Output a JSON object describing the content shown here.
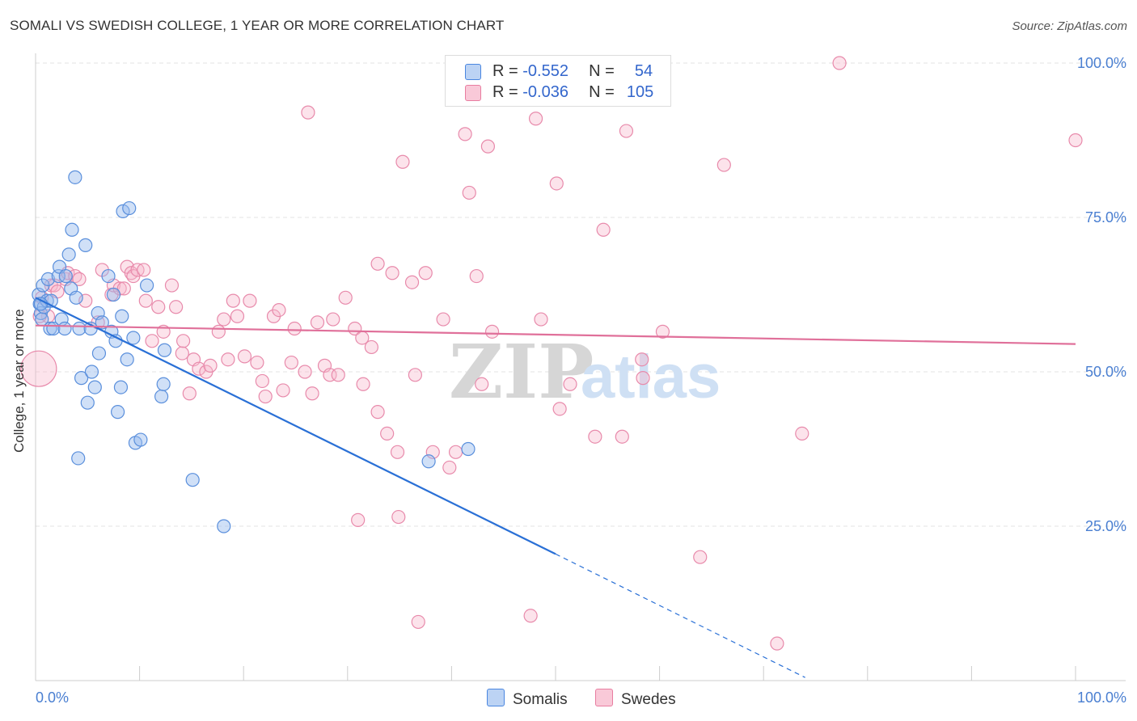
{
  "title": "SOMALI VS SWEDISH COLLEGE, 1 YEAR OR MORE CORRELATION CHART",
  "source": "Source: ZipAtlas.com",
  "watermark": {
    "zip": "ZIP",
    "atlas": "atlas"
  },
  "legend": {
    "r_label": "R =",
    "n_label": "N =",
    "series": [
      {
        "name": "Somalis",
        "r": "-0.552",
        "n": "54",
        "color": "#4a86e0",
        "fill": "#a9c6f2",
        "line": "#2a70d6"
      },
      {
        "name": "Swedes",
        "r": "-0.036",
        "n": "105",
        "color": "#e87da0",
        "fill": "#f7bfd0",
        "line": "#e0709a"
      }
    ]
  },
  "chart_data": {
    "type": "scatter",
    "title": "SOMALI VS SWEDISH COLLEGE, 1 YEAR OR MORE CORRELATION CHART",
    "xlabel": "",
    "ylabel": "College, 1 year or more",
    "xlim": [
      0,
      100
    ],
    "ylim": [
      0,
      102
    ],
    "x_tick_labels": [
      "0.0%",
      "100.0%"
    ],
    "y_ticks": [
      25,
      50,
      75,
      100
    ],
    "y_tick_labels": [
      "25.0%",
      "50.0%",
      "75.0%",
      "100.0%"
    ],
    "series": [
      {
        "name": "Somalis",
        "trend": {
          "x0": 0,
          "y0": 62,
          "x1": 50,
          "y1": 20.5,
          "dash_to_x": 74,
          "dash_to_y": 0.5
        },
        "points": [
          [
            0.3,
            62.5
          ],
          [
            0.4,
            61
          ],
          [
            0.5,
            59.5
          ],
          [
            0.6,
            58.5
          ],
          [
            0.7,
            64
          ],
          [
            0.8,
            60.5
          ],
          [
            1.1,
            61.5
          ],
          [
            1.2,
            65
          ],
          [
            1.4,
            57
          ],
          [
            1.5,
            61.5
          ],
          [
            1.7,
            57
          ],
          [
            2.2,
            65.5
          ],
          [
            2.3,
            67
          ],
          [
            2.5,
            58.5
          ],
          [
            2.8,
            57
          ],
          [
            2.9,
            65.5
          ],
          [
            3.2,
            69
          ],
          [
            3.4,
            63.5
          ],
          [
            3.5,
            73
          ],
          [
            3.8,
            81.5
          ],
          [
            3.9,
            62
          ],
          [
            4.1,
            36
          ],
          [
            4.2,
            57
          ],
          [
            4.4,
            49
          ],
          [
            4.8,
            70.5
          ],
          [
            5,
            45
          ],
          [
            5.3,
            57
          ],
          [
            5.4,
            50
          ],
          [
            5.7,
            47.5
          ],
          [
            6,
            59.5
          ],
          [
            6.1,
            53
          ],
          [
            6.4,
            58
          ],
          [
            7.0,
            65.5
          ],
          [
            7.3,
            56.5
          ],
          [
            7.5,
            62.5
          ],
          [
            7.7,
            55
          ],
          [
            7.9,
            43.5
          ],
          [
            8.2,
            47.5
          ],
          [
            8.3,
            59
          ],
          [
            8.4,
            76
          ],
          [
            8.8,
            52
          ],
          [
            9.0,
            76.5
          ],
          [
            9.4,
            55.5
          ],
          [
            9.6,
            38.5
          ],
          [
            10.1,
            39
          ],
          [
            10.7,
            64
          ],
          [
            12.1,
            46
          ],
          [
            12.3,
            48
          ],
          [
            12.4,
            53.5
          ],
          [
            15.1,
            32.5
          ],
          [
            18.1,
            25
          ],
          [
            37.8,
            35.5
          ],
          [
            41.6,
            37.5
          ],
          [
            0.5,
            61
          ]
        ]
      },
      {
        "name": "Swedes",
        "trend": {
          "x0": 0,
          "y0": 57.5,
          "x1": 100,
          "y1": 54.5
        },
        "points": [
          [
            0.3,
            50.5
          ],
          [
            0.6,
            62
          ],
          [
            1.2,
            59
          ],
          [
            1.5,
            64
          ],
          [
            1.8,
            64
          ],
          [
            2.1,
            63
          ],
          [
            2.9,
            65
          ],
          [
            3.1,
            66
          ],
          [
            3.8,
            65.5
          ],
          [
            4.2,
            65
          ],
          [
            4.8,
            61.5
          ],
          [
            6,
            58
          ],
          [
            6.4,
            66.5
          ],
          [
            7.3,
            62.5
          ],
          [
            7.5,
            64
          ],
          [
            8.1,
            63.5
          ],
          [
            8.5,
            63.5
          ],
          [
            8.8,
            67
          ],
          [
            9.2,
            66
          ],
          [
            9.4,
            65.5
          ],
          [
            9.8,
            66.5
          ],
          [
            10.4,
            66.5
          ],
          [
            10.6,
            61.5
          ],
          [
            11.2,
            55
          ],
          [
            11.8,
            60.5
          ],
          [
            12.3,
            56.5
          ],
          [
            13.1,
            64
          ],
          [
            13.5,
            60.5
          ],
          [
            14.1,
            53
          ],
          [
            14.2,
            55
          ],
          [
            14.8,
            46.5
          ],
          [
            15.2,
            52
          ],
          [
            15.7,
            50.5
          ],
          [
            16.4,
            50
          ],
          [
            16.8,
            51
          ],
          [
            17.6,
            56.5
          ],
          [
            18.1,
            58.5
          ],
          [
            18.5,
            52
          ],
          [
            19.0,
            61.5
          ],
          [
            19.4,
            59
          ],
          [
            20.1,
            52.5
          ],
          [
            20.6,
            61.5
          ],
          [
            21.3,
            51.5
          ],
          [
            21.8,
            48.5
          ],
          [
            22.1,
            46
          ],
          [
            22.9,
            59
          ],
          [
            23.4,
            60
          ],
          [
            23.8,
            47
          ],
          [
            24.6,
            51.5
          ],
          [
            24.9,
            57
          ],
          [
            25.9,
            50
          ],
          [
            26.2,
            92
          ],
          [
            26.6,
            46.5
          ],
          [
            27.1,
            58
          ],
          [
            27.8,
            51
          ],
          [
            28.3,
            49.5
          ],
          [
            28.6,
            58.5
          ],
          [
            29.1,
            49.5
          ],
          [
            29.8,
            62
          ],
          [
            30.7,
            57
          ],
          [
            31,
            26
          ],
          [
            31.4,
            55.5
          ],
          [
            31.5,
            48
          ],
          [
            32.3,
            54
          ],
          [
            32.9,
            43.5
          ],
          [
            32.9,
            67.5
          ],
          [
            33.8,
            40
          ],
          [
            34.3,
            66
          ],
          [
            34.8,
            37
          ],
          [
            34.9,
            26.5
          ],
          [
            35.3,
            84
          ],
          [
            36.2,
            64.5
          ],
          [
            36.5,
            49.5
          ],
          [
            36.8,
            9.5
          ],
          [
            37.5,
            66
          ],
          [
            38.2,
            37
          ],
          [
            39.2,
            58.5
          ],
          [
            39.8,
            34.5
          ],
          [
            40.4,
            37
          ],
          [
            41.3,
            88.5
          ],
          [
            41.7,
            79
          ],
          [
            42.4,
            65.5
          ],
          [
            42.9,
            48
          ],
          [
            43.5,
            86.5
          ],
          [
            43.9,
            56.5
          ],
          [
            46.8,
            100
          ],
          [
            47.6,
            10.5
          ],
          [
            48.1,
            91
          ],
          [
            48.6,
            58.5
          ],
          [
            50.1,
            80.5
          ],
          [
            50.4,
            44
          ],
          [
            51.4,
            48
          ],
          [
            53.8,
            39.5
          ],
          [
            54.6,
            73
          ],
          [
            56.4,
            39.5
          ],
          [
            56.8,
            89
          ],
          [
            58.3,
            52
          ],
          [
            58.4,
            49
          ],
          [
            60.3,
            56.5
          ],
          [
            63.9,
            20
          ],
          [
            66.2,
            83.5
          ],
          [
            71.3,
            6
          ],
          [
            73.7,
            40
          ],
          [
            77.3,
            100
          ],
          [
            100,
            87.5
          ],
          [
            0.4,
            59
          ]
        ]
      }
    ]
  }
}
